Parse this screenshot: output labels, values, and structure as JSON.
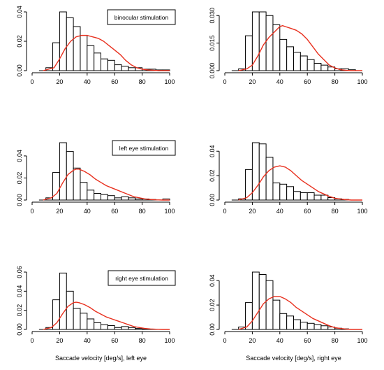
{
  "chart_data": [
    {
      "type": "histogram",
      "panel": "row1-left",
      "legend": "binocular stimulation",
      "xlabel": "",
      "xlim": [
        0,
        100
      ],
      "ylim": [
        0,
        0.04
      ],
      "x_ticks": [
        "0",
        "20",
        "40",
        "60",
        "80",
        "100"
      ],
      "y_ticks": [
        "0.00",
        "0.02",
        "0.04"
      ],
      "y_tick_values": [
        0,
        0.02,
        0.04
      ],
      "bin_width": 5,
      "bins": [
        {
          "x0": 10,
          "y": 0.002
        },
        {
          "x0": 15,
          "y": 0.019
        },
        {
          "x0": 20,
          "y": 0.04
        },
        {
          "x0": 25,
          "y": 0.036
        },
        {
          "x0": 30,
          "y": 0.03
        },
        {
          "x0": 35,
          "y": 0.024
        },
        {
          "x0": 40,
          "y": 0.017
        },
        {
          "x0": 45,
          "y": 0.012
        },
        {
          "x0": 50,
          "y": 0.008
        },
        {
          "x0": 55,
          "y": 0.007
        },
        {
          "x0": 60,
          "y": 0.004
        },
        {
          "x0": 65,
          "y": 0.003
        },
        {
          "x0": 70,
          "y": 0.002
        },
        {
          "x0": 75,
          "y": 0.002
        },
        {
          "x0": 80,
          "y": 0.001
        },
        {
          "x0": 85,
          "y": 0.001
        },
        {
          "x0": 90,
          "y": 0.0005
        },
        {
          "x0": 95,
          "y": 0.0005
        }
      ],
      "density_x": [
        8,
        16,
        20,
        24,
        28,
        32,
        36,
        40,
        44,
        48,
        52,
        56,
        60,
        64,
        68,
        72,
        76,
        80,
        84,
        88,
        92,
        96,
        100
      ],
      "density_y": [
        0.0,
        0.002,
        0.008,
        0.015,
        0.02,
        0.023,
        0.024,
        0.024,
        0.023,
        0.022,
        0.02,
        0.017,
        0.014,
        0.011,
        0.007,
        0.004,
        0.002,
        0.001,
        0.0005,
        0.0003,
        0.0,
        0.0,
        0.0
      ]
    },
    {
      "type": "histogram",
      "panel": "row1-right",
      "legend": "",
      "xlabel": "",
      "xlim": [
        0,
        100
      ],
      "ylim": [
        0,
        0.032
      ],
      "x_ticks": [
        "0",
        "20",
        "40",
        "60",
        "80",
        "100"
      ],
      "y_ticks": [
        "0.000",
        "0.015",
        "0.030"
      ],
      "y_tick_values": [
        0,
        0.015,
        0.03
      ],
      "bin_width": 5,
      "bins": [
        {
          "x0": 10,
          "y": 0.001
        },
        {
          "x0": 15,
          "y": 0.019
        },
        {
          "x0": 20,
          "y": 0.032
        },
        {
          "x0": 25,
          "y": 0.032
        },
        {
          "x0": 30,
          "y": 0.03
        },
        {
          "x0": 35,
          "y": 0.025
        },
        {
          "x0": 40,
          "y": 0.017
        },
        {
          "x0": 45,
          "y": 0.013
        },
        {
          "x0": 50,
          "y": 0.01
        },
        {
          "x0": 55,
          "y": 0.008
        },
        {
          "x0": 60,
          "y": 0.006
        },
        {
          "x0": 65,
          "y": 0.004
        },
        {
          "x0": 70,
          "y": 0.003
        },
        {
          "x0": 75,
          "y": 0.002
        },
        {
          "x0": 80,
          "y": 0.001
        },
        {
          "x0": 85,
          "y": 0.001
        },
        {
          "x0": 90,
          "y": 0.0005
        }
      ],
      "density_x": [
        10,
        16,
        20,
        24,
        28,
        32,
        36,
        40,
        42,
        44,
        48,
        52,
        56,
        60,
        64,
        68,
        72,
        76,
        80,
        84,
        88,
        92,
        96,
        100
      ],
      "density_y": [
        0.0,
        0.001,
        0.003,
        0.008,
        0.014,
        0.018,
        0.021,
        0.024,
        0.0245,
        0.024,
        0.023,
        0.022,
        0.02,
        0.017,
        0.013,
        0.009,
        0.006,
        0.003,
        0.0015,
        0.0005,
        0.0002,
        0.0,
        0.0,
        0.0
      ]
    },
    {
      "type": "histogram",
      "panel": "row2-left",
      "legend": "left eye stimulation",
      "xlabel": "",
      "xlim": [
        0,
        100
      ],
      "ylim": [
        0,
        0.052
      ],
      "x_ticks": [
        "0",
        "20",
        "40",
        "60",
        "80",
        "100"
      ],
      "y_ticks": [
        "0.00",
        "0.02",
        "0.04"
      ],
      "y_tick_values": [
        0,
        0.02,
        0.04
      ],
      "bin_width": 5,
      "bins": [
        {
          "x0": 10,
          "y": 0.002
        },
        {
          "x0": 15,
          "y": 0.025
        },
        {
          "x0": 20,
          "y": 0.052
        },
        {
          "x0": 25,
          "y": 0.044
        },
        {
          "x0": 30,
          "y": 0.029
        },
        {
          "x0": 35,
          "y": 0.016
        },
        {
          "x0": 40,
          "y": 0.009
        },
        {
          "x0": 45,
          "y": 0.006
        },
        {
          "x0": 50,
          "y": 0.005
        },
        {
          "x0": 55,
          "y": 0.004
        },
        {
          "x0": 60,
          "y": 0.002
        },
        {
          "x0": 65,
          "y": 0.003
        },
        {
          "x0": 70,
          "y": 0.002
        },
        {
          "x0": 75,
          "y": 0.001
        },
        {
          "x0": 80,
          "y": 0.001
        },
        {
          "x0": 85,
          "y": 0.0005
        },
        {
          "x0": 95,
          "y": 0.001
        }
      ],
      "density_x": [
        8,
        14,
        18,
        22,
        26,
        30,
        32,
        34,
        38,
        42,
        46,
        50,
        54,
        58,
        62,
        66,
        70,
        74,
        78,
        82,
        86,
        90,
        95,
        100
      ],
      "density_y": [
        0.0,
        0.002,
        0.006,
        0.015,
        0.023,
        0.027,
        0.028,
        0.028,
        0.026,
        0.023,
        0.019,
        0.016,
        0.013,
        0.011,
        0.009,
        0.007,
        0.005,
        0.003,
        0.002,
        0.001,
        0.0005,
        0.0002,
        0.0,
        0.0
      ]
    },
    {
      "type": "histogram",
      "panel": "row2-right",
      "legend": "",
      "xlabel": "",
      "xlim": [
        0,
        100
      ],
      "ylim": [
        0,
        0.047
      ],
      "x_ticks": [
        "0",
        "20",
        "40",
        "60",
        "80",
        "100"
      ],
      "y_ticks": [
        "0.00",
        "0.02",
        "0.04"
      ],
      "y_tick_values": [
        0,
        0.02,
        0.04
      ],
      "bin_width": 5,
      "bins": [
        {
          "x0": 10,
          "y": 0.001
        },
        {
          "x0": 15,
          "y": 0.025
        },
        {
          "x0": 20,
          "y": 0.047
        },
        {
          "x0": 25,
          "y": 0.046
        },
        {
          "x0": 30,
          "y": 0.035
        },
        {
          "x0": 35,
          "y": 0.014
        },
        {
          "x0": 40,
          "y": 0.013
        },
        {
          "x0": 45,
          "y": 0.011
        },
        {
          "x0": 50,
          "y": 0.007
        },
        {
          "x0": 55,
          "y": 0.006
        },
        {
          "x0": 60,
          "y": 0.006
        },
        {
          "x0": 65,
          "y": 0.004
        },
        {
          "x0": 70,
          "y": 0.004
        },
        {
          "x0": 75,
          "y": 0.002
        },
        {
          "x0": 80,
          "y": 0.001
        },
        {
          "x0": 85,
          "y": 0.0005
        }
      ],
      "density_x": [
        10,
        16,
        20,
        24,
        28,
        32,
        36,
        40,
        44,
        48,
        52,
        56,
        60,
        64,
        68,
        72,
        76,
        80,
        84,
        88,
        92,
        96,
        100
      ],
      "density_y": [
        0.0,
        0.002,
        0.006,
        0.012,
        0.019,
        0.024,
        0.027,
        0.028,
        0.027,
        0.024,
        0.02,
        0.016,
        0.013,
        0.01,
        0.007,
        0.005,
        0.003,
        0.0015,
        0.0008,
        0.0003,
        0.0,
        0.0,
        0.0
      ]
    },
    {
      "type": "histogram",
      "panel": "row3-left",
      "legend": "right eye stimulation",
      "xlabel": "Saccade velocity [deg/s], left eye",
      "xlim": [
        0,
        100
      ],
      "ylim": [
        0,
        0.06
      ],
      "x_ticks": [
        "0",
        "20",
        "40",
        "60",
        "80",
        "100"
      ],
      "y_ticks": [
        "0.00",
        "0.02",
        "0.04",
        "0.06"
      ],
      "y_tick_values": [
        0,
        0.02,
        0.04,
        0.06
      ],
      "bin_width": 5,
      "bins": [
        {
          "x0": 10,
          "y": 0.002
        },
        {
          "x0": 15,
          "y": 0.031
        },
        {
          "x0": 20,
          "y": 0.059
        },
        {
          "x0": 25,
          "y": 0.04
        },
        {
          "x0": 30,
          "y": 0.022
        },
        {
          "x0": 35,
          "y": 0.017
        },
        {
          "x0": 40,
          "y": 0.011
        },
        {
          "x0": 45,
          "y": 0.007
        },
        {
          "x0": 50,
          "y": 0.005
        },
        {
          "x0": 55,
          "y": 0.004
        },
        {
          "x0": 60,
          "y": 0.002
        },
        {
          "x0": 65,
          "y": 0.003
        },
        {
          "x0": 70,
          "y": 0.002
        },
        {
          "x0": 75,
          "y": 0.001
        },
        {
          "x0": 80,
          "y": 0.0005
        }
      ],
      "density_x": [
        8,
        14,
        18,
        22,
        26,
        30,
        32,
        34,
        38,
        42,
        46,
        50,
        54,
        58,
        62,
        66,
        70,
        74,
        78,
        82,
        86,
        90,
        95,
        100
      ],
      "density_y": [
        0.0,
        0.002,
        0.007,
        0.016,
        0.024,
        0.028,
        0.0285,
        0.028,
        0.026,
        0.023,
        0.019,
        0.016,
        0.013,
        0.011,
        0.009,
        0.007,
        0.005,
        0.003,
        0.002,
        0.001,
        0.0005,
        0.0002,
        0.0,
        0.0
      ]
    },
    {
      "type": "histogram",
      "panel": "row3-right",
      "legend": "",
      "xlabel": "Saccade velocity [deg/s], right eye",
      "xlim": [
        0,
        100
      ],
      "ylim": [
        0,
        0.047
      ],
      "x_ticks": [
        "0",
        "20",
        "40",
        "60",
        "80",
        "100"
      ],
      "y_ticks": [
        "0.00",
        "0.02",
        "0.04"
      ],
      "y_tick_values": [
        0,
        0.02,
        0.04
      ],
      "bin_width": 5,
      "bins": [
        {
          "x0": 10,
          "y": 0.002
        },
        {
          "x0": 15,
          "y": 0.022
        },
        {
          "x0": 20,
          "y": 0.047
        },
        {
          "x0": 25,
          "y": 0.045
        },
        {
          "x0": 30,
          "y": 0.04
        },
        {
          "x0": 35,
          "y": 0.024
        },
        {
          "x0": 40,
          "y": 0.013
        },
        {
          "x0": 45,
          "y": 0.011
        },
        {
          "x0": 50,
          "y": 0.008
        },
        {
          "x0": 55,
          "y": 0.006
        },
        {
          "x0": 60,
          "y": 0.005
        },
        {
          "x0": 65,
          "y": 0.004
        },
        {
          "x0": 70,
          "y": 0.003
        },
        {
          "x0": 75,
          "y": 0.002
        },
        {
          "x0": 80,
          "y": 0.001
        },
        {
          "x0": 85,
          "y": 0.0005
        }
      ],
      "density_x": [
        10,
        16,
        20,
        24,
        28,
        32,
        36,
        40,
        44,
        48,
        52,
        56,
        60,
        64,
        68,
        72,
        76,
        80,
        84,
        88,
        92,
        96,
        100
      ],
      "density_y": [
        0.0,
        0.002,
        0.007,
        0.014,
        0.021,
        0.025,
        0.027,
        0.027,
        0.025,
        0.022,
        0.018,
        0.015,
        0.012,
        0.009,
        0.007,
        0.005,
        0.003,
        0.0015,
        0.0008,
        0.0003,
        0.0,
        0.0,
        0.0
      ]
    }
  ],
  "colors": {
    "density_line": "#e8301e",
    "bar_stroke": "#000000",
    "bar_fill": "#ffffff"
  }
}
